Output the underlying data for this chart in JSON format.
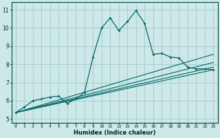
{
  "xlabel": "Humidex (Indice chaleur)",
  "xlim": [
    -0.5,
    23.5
  ],
  "ylim": [
    4.8,
    11.4
  ],
  "background_color": "#cce8e8",
  "grid_color": "#aacccc",
  "line_color": "#006666",
  "xticks": [
    0,
    1,
    2,
    3,
    4,
    5,
    6,
    7,
    8,
    9,
    10,
    11,
    12,
    13,
    14,
    15,
    16,
    17,
    18,
    19,
    20,
    21,
    22,
    23
  ],
  "yticks": [
    5,
    6,
    7,
    8,
    9,
    10,
    11
  ],
  "main_line": {
    "x": [
      0,
      1,
      2,
      3,
      4,
      5,
      6,
      7,
      8,
      9,
      10,
      11,
      12,
      13,
      14,
      15,
      16,
      17,
      18,
      19,
      20,
      21,
      22,
      23
    ],
    "y": [
      5.35,
      5.65,
      6.0,
      6.1,
      6.2,
      6.25,
      5.85,
      6.1,
      6.45,
      8.4,
      10.0,
      10.55,
      9.85,
      10.35,
      10.95,
      10.25,
      8.55,
      8.6,
      8.4,
      8.35,
      7.85,
      7.75,
      7.75,
      7.7
    ]
  },
  "trend_lines": [
    {
      "x": [
        0,
        23
      ],
      "y": [
        5.35,
        7.7
      ]
    },
    {
      "x": [
        0,
        23
      ],
      "y": [
        5.35,
        7.85
      ]
    },
    {
      "x": [
        0,
        23
      ],
      "y": [
        5.35,
        8.1
      ]
    },
    {
      "x": [
        0,
        23
      ],
      "y": [
        5.35,
        8.55
      ]
    }
  ]
}
